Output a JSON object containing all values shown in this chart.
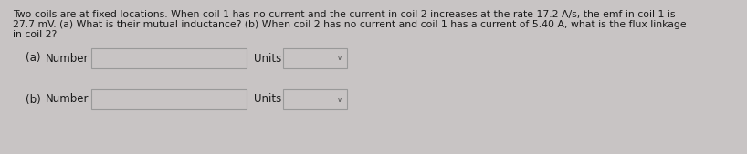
{
  "background_color": "#c8c4c4",
  "text_color": "#1a1a1a",
  "line1": "Two coils are at fixed locations. When coil 1 has no current and the current in coil 2 increases at the rate 17.2 A/s, the emf in coil 1 is",
  "line2": "27.7 mV. (a) What is their mutual inductance? (b) When coil 2 has no current and coil 1 has a current of 5.40 A, what is the flux linkage",
  "line3": "in coil 2?",
  "row_a_label_1": "(a)",
  "row_a_label_2": "Number",
  "row_b_label_1": "(b)",
  "row_b_label_2": "Number",
  "units_label": "Units",
  "box_fill": "#c8c4c4",
  "box_edge": "#999999",
  "units_box_fill": "#c8c4c4",
  "units_box_edge": "#999999",
  "fig_width": 8.18,
  "fig_height": 1.69,
  "dpi": 100,
  "font_size_text": 7.8,
  "font_size_labels": 8.5
}
